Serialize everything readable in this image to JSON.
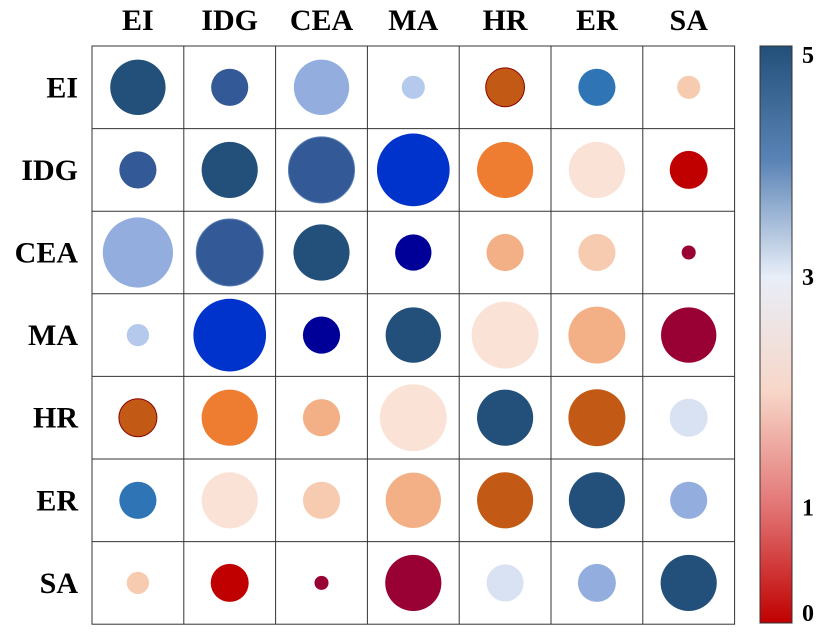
{
  "chart_data": {
    "type": "heatmap",
    "style": "correlation bubble matrix (circle size and color encode value)",
    "row_labels": [
      "EI",
      "IDG",
      "CEA",
      "MA",
      "HR",
      "ER",
      "SA"
    ],
    "col_labels": [
      "EI",
      "IDG",
      "CEA",
      "MA",
      "HR",
      "ER",
      "SA"
    ],
    "cells": [
      [
        {
          "size": 0.67,
          "color": "#22507A"
        },
        {
          "size": 0.45,
          "color": "#335A96"
        },
        {
          "size": 0.67,
          "color": "#93AEDE"
        },
        {
          "size": 0.28,
          "color": "#B4C9EC"
        },
        {
          "size": 0.47,
          "color": "#C25A15",
          "stroke": "#8B0000"
        },
        {
          "size": 0.45,
          "color": "#2F75B5"
        },
        {
          "size": 0.28,
          "color": "#F7CBB0"
        }
      ],
      [
        {
          "size": 0.45,
          "color": "#335A96"
        },
        {
          "size": 0.68,
          "color": "#22507A"
        },
        {
          "size": 0.8,
          "color": "#335A96",
          "stroke": "#5B7FB5"
        },
        {
          "size": 0.88,
          "color": "#0033CC"
        },
        {
          "size": 0.68,
          "color": "#EE7D32"
        },
        {
          "size": 0.68,
          "color": "#FBE2D6"
        },
        {
          "size": 0.46,
          "color": "#C00000"
        }
      ],
      [
        {
          "size": 0.85,
          "color": "#93AEDE"
        },
        {
          "size": 0.81,
          "color": "#335A96",
          "stroke": "#5B7FB5"
        },
        {
          "size": 0.68,
          "color": "#22507A"
        },
        {
          "size": 0.44,
          "color": "#000099"
        },
        {
          "size": 0.45,
          "color": "#F3B086"
        },
        {
          "size": 0.45,
          "color": "#F7CBB0"
        },
        {
          "size": 0.17,
          "color": "#990033"
        }
      ],
      [
        {
          "size": 0.27,
          "color": "#B4C9EC"
        },
        {
          "size": 0.88,
          "color": "#0033CC"
        },
        {
          "size": 0.45,
          "color": "#000099"
        },
        {
          "size": 0.67,
          "color": "#22507A"
        },
        {
          "size": 0.81,
          "color": "#FBE2D6"
        },
        {
          "size": 0.69,
          "color": "#F3B086"
        },
        {
          "size": 0.67,
          "color": "#990033"
        }
      ],
      [
        {
          "size": 0.46,
          "color": "#C25A15",
          "stroke": "#8B0000"
        },
        {
          "size": 0.68,
          "color": "#EE7D32"
        },
        {
          "size": 0.45,
          "color": "#F3B086"
        },
        {
          "size": 0.81,
          "color": "#FBE2D6"
        },
        {
          "size": 0.68,
          "color": "#22507A"
        },
        {
          "size": 0.69,
          "color": "#C25A15"
        },
        {
          "size": 0.46,
          "color": "#D9E2F3"
        }
      ],
      [
        {
          "size": 0.45,
          "color": "#2F75B5"
        },
        {
          "size": 0.68,
          "color": "#FBE2D6"
        },
        {
          "size": 0.45,
          "color": "#F7CBB0"
        },
        {
          "size": 0.67,
          "color": "#F3B086"
        },
        {
          "size": 0.68,
          "color": "#C25A15"
        },
        {
          "size": 0.68,
          "color": "#22507A"
        },
        {
          "size": 0.45,
          "color": "#93AEDE"
        }
      ],
      [
        {
          "size": 0.27,
          "color": "#F7CBB0"
        },
        {
          "size": 0.46,
          "color": "#C00000"
        },
        {
          "size": 0.17,
          "color": "#990033"
        },
        {
          "size": 0.68,
          "color": "#990033"
        },
        {
          "size": 0.45,
          "color": "#D9E2F3"
        },
        {
          "size": 0.46,
          "color": "#93AEDE"
        },
        {
          "size": 0.68,
          "color": "#22507A"
        }
      ]
    ],
    "colorbar": {
      "range": [
        0,
        5
      ],
      "ticks": [
        {
          "value": 5,
          "label": "5"
        },
        {
          "value": 3,
          "label": "3"
        },
        {
          "value": 1,
          "label": "1"
        },
        {
          "value": 0,
          "label": "0"
        }
      ],
      "stops": [
        {
          "value": 0,
          "color": "#C00000"
        },
        {
          "value": 1,
          "color": "#E27474"
        },
        {
          "value": 2,
          "color": "#F7D6C8"
        },
        {
          "value": 3,
          "color": "#E8EEF8"
        },
        {
          "value": 4,
          "color": "#5B84B6"
        },
        {
          "value": 5,
          "color": "#22507A"
        }
      ]
    }
  }
}
